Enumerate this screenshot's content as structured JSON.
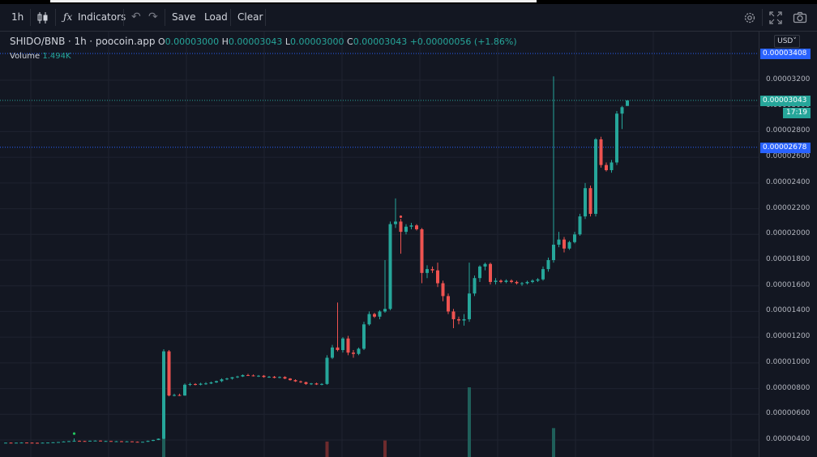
{
  "toolbar": {
    "interval": "1h",
    "indicators_label": "Indicators",
    "save_label": "Save",
    "load_label": "Load",
    "clear_label": "Clear"
  },
  "legend": {
    "symbol": "SHIDO/BNB",
    "interval": "1h",
    "source": "poocoin.app",
    "o_key": "O",
    "o": "0.00003000",
    "h_key": "H",
    "h": "0.00003043",
    "l_key": "L",
    "l": "0.00003000",
    "c_key": "C",
    "c": "0.00003043",
    "change": "+0.00000056 (+1.86%)",
    "volume_label": "Volume",
    "volume_value": "1.494K"
  },
  "scale": {
    "currency": "USD",
    "ticks": [
      "0.00003200",
      "0.00003000",
      "0.00002800",
      "0.00002600",
      "0.00002400",
      "0.00002200",
      "0.00002000",
      "0.00001800",
      "0.00001600",
      "0.00001400",
      "0.00001200",
      "0.00001000",
      "0.00000800",
      "0.00000600",
      "0.00000400"
    ],
    "line_labels": [
      "0.00003408",
      "0.00003043",
      "0.00002678"
    ],
    "countdown": "17:19"
  },
  "colors": {
    "up": "#26a69a",
    "down": "#ef5350",
    "line": "#2962ff",
    "background": "#131722"
  },
  "chart_data": {
    "type": "candlestick",
    "ylim": [
      3.2e-06,
      3.42e-05
    ],
    "candles": [
      [
        3.77e-06,
        3.8e-06,
        3.76e-06,
        3.79e-06
      ],
      [
        3.79e-06,
        3.81e-06,
        3.77e-06,
        3.78e-06
      ],
      [
        3.78e-06,
        3.8e-06,
        3.77e-06,
        3.79e-06
      ],
      [
        3.79e-06,
        3.82e-06,
        3.78e-06,
        3.8e-06
      ],
      [
        3.8e-06,
        3.81e-06,
        3.78e-06,
        3.79e-06
      ],
      [
        3.79e-06,
        3.81e-06,
        3.77e-06,
        3.78e-06
      ],
      [
        3.78e-06,
        3.8e-06,
        3.76e-06,
        3.77e-06
      ],
      [
        3.77e-06,
        3.8e-06,
        3.76e-06,
        3.79e-06
      ],
      [
        3.79e-06,
        3.81e-06,
        3.78e-06,
        3.8e-06
      ],
      [
        3.8e-06,
        3.83e-06,
        3.79e-06,
        3.82e-06
      ],
      [
        3.82e-06,
        3.85e-06,
        3.8e-06,
        3.84e-06
      ],
      [
        3.84e-06,
        3.9e-06,
        3.83e-06,
        3.88e-06
      ],
      [
        3.88e-06,
        3.93e-06,
        3.86e-06,
        3.91e-06
      ],
      [
        3.91e-06,
        4.12e-06,
        3.9e-06,
        3.93e-06
      ],
      [
        3.93e-06,
        3.96e-06,
        3.9e-06,
        3.92e-06
      ],
      [
        3.92e-06,
        3.94e-06,
        3.88e-06,
        3.9e-06
      ],
      [
        3.9e-06,
        3.95e-06,
        3.89e-06,
        3.94e-06
      ],
      [
        3.94e-06,
        3.97e-06,
        3.91e-06,
        3.95e-06
      ],
      [
        3.95e-06,
        3.97e-06,
        3.9e-06,
        3.91e-06
      ],
      [
        3.91e-06,
        3.94e-06,
        3.88e-06,
        3.92e-06
      ],
      [
        3.92e-06,
        3.93e-06,
        3.87e-06,
        3.89e-06
      ],
      [
        3.89e-06,
        3.92e-06,
        3.87e-06,
        3.9e-06
      ],
      [
        3.9e-06,
        3.92e-06,
        3.86e-06,
        3.88e-06
      ],
      [
        3.88e-06,
        3.91e-06,
        3.86e-06,
        3.89e-06
      ],
      [
        3.89e-06,
        3.9e-06,
        3.84e-06,
        3.86e-06
      ],
      [
        3.86e-06,
        3.88e-06,
        3.82e-06,
        3.84e-06
      ],
      [
        3.84e-06,
        3.87e-06,
        3.82e-06,
        3.86e-06
      ],
      [
        3.86e-06,
        3.95e-06,
        3.85e-06,
        3.93e-06
      ],
      [
        3.93e-06,
        4.02e-06,
        3.91e-06,
        4e-06
      ],
      [
        4e-06,
        4.12e-06,
        3.99e-06,
        4.1e-06
      ],
      [
        4.1e-06,
        1.106e-05,
        4.06e-06,
        1.09e-05
      ],
      [
        1.09e-05,
        1.1e-05,
        7.4e-06,
        7.46e-06
      ],
      [
        7.46e-06,
        7.6e-06,
        7.4e-06,
        7.5e-06
      ],
      [
        7.5e-06,
        7.6e-06,
        7.42e-06,
        7.46e-06
      ],
      [
        7.46e-06,
        8.4e-06,
        7.44e-06,
        8.3e-06
      ],
      [
        8.3e-06,
        8.45e-06,
        8.2e-06,
        8.35e-06
      ],
      [
        8.35e-06,
        8.42e-06,
        8.25e-06,
        8.3e-06
      ],
      [
        8.3e-06,
        8.45e-06,
        8.25e-06,
        8.38e-06
      ],
      [
        8.38e-06,
        8.5e-06,
        8.3e-06,
        8.4e-06
      ],
      [
        8.4e-06,
        8.55e-06,
        8.35e-06,
        8.48e-06
      ],
      [
        8.48e-06,
        8.62e-06,
        8.44e-06,
        8.58e-06
      ],
      [
        8.58e-06,
        8.8e-06,
        8.5e-06,
        8.72e-06
      ],
      [
        8.72e-06,
        8.85e-06,
        8.66e-06,
        8.78e-06
      ],
      [
        8.78e-06,
        8.9e-06,
        8.7e-06,
        8.88e-06
      ],
      [
        8.88e-06,
        9e-06,
        8.82e-06,
        8.94e-06
      ],
      [
        8.94e-06,
        9.1e-06,
        8.9e-06,
        9.05e-06
      ],
      [
        9.05e-06,
        9.15e-06,
        8.98e-06,
        9.02e-06
      ],
      [
        9.02e-06,
        9.1e-06,
        8.94e-06,
        8.98e-06
      ],
      [
        8.98e-06,
        9.05e-06,
        8.9e-06,
        9e-06
      ],
      [
        9e-06,
        9.05e-06,
        8.85e-06,
        8.9e-06
      ],
      [
        8.9e-06,
        8.98e-06,
        8.84e-06,
        8.92e-06
      ],
      [
        8.92e-06,
        8.98e-06,
        8.8e-06,
        8.84e-06
      ],
      [
        8.84e-06,
        8.95e-06,
        8.8e-06,
        8.9e-06
      ],
      [
        8.9e-06,
        8.96e-06,
        8.74e-06,
        8.78e-06
      ],
      [
        8.78e-06,
        8.82e-06,
        8.62e-06,
        8.66e-06
      ],
      [
        8.66e-06,
        8.72e-06,
        8.52e-06,
        8.56e-06
      ],
      [
        8.56e-06,
        8.62e-06,
        8.44e-06,
        8.5e-06
      ],
      [
        8.5e-06,
        8.54e-06,
        8.3e-06,
        8.36e-06
      ],
      [
        8.36e-06,
        8.44e-06,
        8.28e-06,
        8.4e-06
      ],
      [
        8.4e-06,
        8.46e-06,
        8.28e-06,
        8.32e-06
      ],
      [
        8.32e-06,
        8.42e-06,
        8.26e-06,
        8.36e-06
      ],
      [
        8.36e-06,
        1.06e-05,
        8.3e-06,
        1.04e-05
      ],
      [
        1.04e-05,
        1.14e-05,
        1.03e-05,
        1.12e-05
      ],
      [
        1.12e-05,
        1.47e-05,
        1.09e-05,
        1.1e-05
      ],
      [
        1.1e-05,
        1.2e-05,
        1.08e-05,
        1.19e-05
      ],
      [
        1.19e-05,
        1.21e-05,
        1.06e-05,
        1.08e-05
      ],
      [
        1.08e-05,
        1.1e-05,
        1.04e-05,
        1.07e-05
      ],
      [
        1.07e-05,
        1.12e-05,
        1.06e-05,
        1.11e-05
      ],
      [
        1.11e-05,
        1.32e-05,
        1.1e-05,
        1.3e-05
      ],
      [
        1.3e-05,
        1.4e-05,
        1.29e-05,
        1.38e-05
      ],
      [
        1.38e-05,
        1.39e-05,
        1.35e-05,
        1.36e-05
      ],
      [
        1.36e-05,
        1.41e-05,
        1.34e-05,
        1.4e-05
      ],
      [
        1.4e-05,
        1.8e-05,
        1.39e-05,
        1.42e-05
      ],
      [
        1.42e-05,
        2.1e-05,
        1.41e-05,
        2.08e-05
      ],
      [
        2.08e-05,
        2.28e-05,
        2.05e-05,
        2.1e-05
      ],
      [
        2.1e-05,
        2.12e-05,
        1.85e-05,
        2.02e-05
      ],
      [
        2.02e-05,
        2.08e-05,
        2e-05,
        2.06e-05
      ],
      [
        2.06e-05,
        2.09e-05,
        2.04e-05,
        2.07e-05
      ],
      [
        2.07e-05,
        2.08e-05,
        2.03e-05,
        2.04e-05
      ],
      [
        2.04e-05,
        2.05e-05,
        1.62e-05,
        1.7e-05
      ],
      [
        1.7e-05,
        1.76e-05,
        1.66e-05,
        1.73e-05
      ],
      [
        1.73e-05,
        1.75e-05,
        1.7e-05,
        1.72e-05
      ],
      [
        1.72e-05,
        1.78e-05,
        1.59e-05,
        1.62e-05
      ],
      [
        1.62e-05,
        1.64e-05,
        1.48e-05,
        1.52e-05
      ],
      [
        1.52e-05,
        1.54e-05,
        1.38e-05,
        1.4e-05
      ],
      [
        1.4e-05,
        1.42e-05,
        1.27e-05,
        1.34e-05
      ],
      [
        1.34e-05,
        1.36e-05,
        1.3e-05,
        1.33e-05
      ],
      [
        1.33e-05,
        1.38e-05,
        1.29e-05,
        1.34e-05
      ],
      [
        1.34e-05,
        1.78e-05,
        1.32e-05,
        1.54e-05
      ],
      [
        1.54e-05,
        1.68e-05,
        1.52e-05,
        1.66e-05
      ],
      [
        1.66e-05,
        1.76e-05,
        1.63e-05,
        1.75e-05
      ],
      [
        1.75e-05,
        1.78e-05,
        1.72e-05,
        1.77e-05
      ],
      [
        1.77e-05,
        1.78e-05,
        1.61e-05,
        1.63e-05
      ],
      [
        1.63e-05,
        1.66e-05,
        1.61e-05,
        1.64e-05
      ],
      [
        1.64e-05,
        1.65e-05,
        1.62e-05,
        1.63e-05
      ],
      [
        1.63e-05,
        1.65e-05,
        1.62e-05,
        1.64e-05
      ],
      [
        1.64e-05,
        1.65e-05,
        1.62e-05,
        1.63e-05
      ],
      [
        1.63e-05,
        1.64e-05,
        1.61e-05,
        1.62e-05
      ],
      [
        1.62e-05,
        1.63e-05,
        1.6e-05,
        1.62e-05
      ],
      [
        1.62e-05,
        1.64e-05,
        1.61e-05,
        1.63e-05
      ],
      [
        1.63e-05,
        1.65e-05,
        1.62e-05,
        1.64e-05
      ],
      [
        1.64e-05,
        1.66e-05,
        1.63e-05,
        1.65e-05
      ],
      [
        1.65e-05,
        1.75e-05,
        1.64e-05,
        1.73e-05
      ],
      [
        1.73e-05,
        1.82e-05,
        1.71e-05,
        1.8e-05
      ],
      [
        1.8e-05,
        3.23e-05,
        1.78e-05,
        1.92e-05
      ],
      [
        1.92e-05,
        2.02e-05,
        1.9e-05,
        1.96e-05
      ],
      [
        1.96e-05,
        1.98e-05,
        1.86e-05,
        1.89e-05
      ],
      [
        1.89e-05,
        1.95e-05,
        1.88e-05,
        1.94e-05
      ],
      [
        1.94e-05,
        2.02e-05,
        1.93e-05,
        2e-05
      ],
      [
        2e-05,
        2.16e-05,
        1.99e-05,
        2.14e-05
      ],
      [
        2.14e-05,
        2.4e-05,
        2.12e-05,
        2.36e-05
      ],
      [
        2.36e-05,
        2.38e-05,
        2.14e-05,
        2.16e-05
      ],
      [
        2.16e-05,
        2.75e-05,
        2.14e-05,
        2.74e-05
      ],
      [
        2.74e-05,
        2.76e-05,
        2.52e-05,
        2.54e-05
      ],
      [
        2.54e-05,
        2.56e-05,
        2.49e-05,
        2.5e-05
      ],
      [
        2.5e-05,
        2.58e-05,
        2.48e-05,
        2.56e-05
      ],
      [
        2.56e-05,
        2.96e-05,
        2.54e-05,
        2.94e-05
      ],
      [
        2.94e-05,
        3e-05,
        2.82e-05,
        2.99e-05
      ],
      [
        3e-05,
        3.043e-05,
        3e-05,
        3.043e-05
      ]
    ],
    "volume": [
      [
        30,
        6e-06,
        "up"
      ],
      [
        61,
        3e-06,
        "down"
      ],
      [
        72,
        3.2e-06,
        "down"
      ],
      [
        88,
        1.35e-05,
        "up"
      ],
      [
        104,
        5.6e-06,
        "up"
      ]
    ],
    "marks": [
      [
        13,
        4.12e-06,
        "up"
      ],
      [
        75,
        2.1e-05,
        "down"
      ]
    ],
    "price_lines": [
      3.408e-05,
      3.043e-05,
      2.678e-05
    ]
  }
}
